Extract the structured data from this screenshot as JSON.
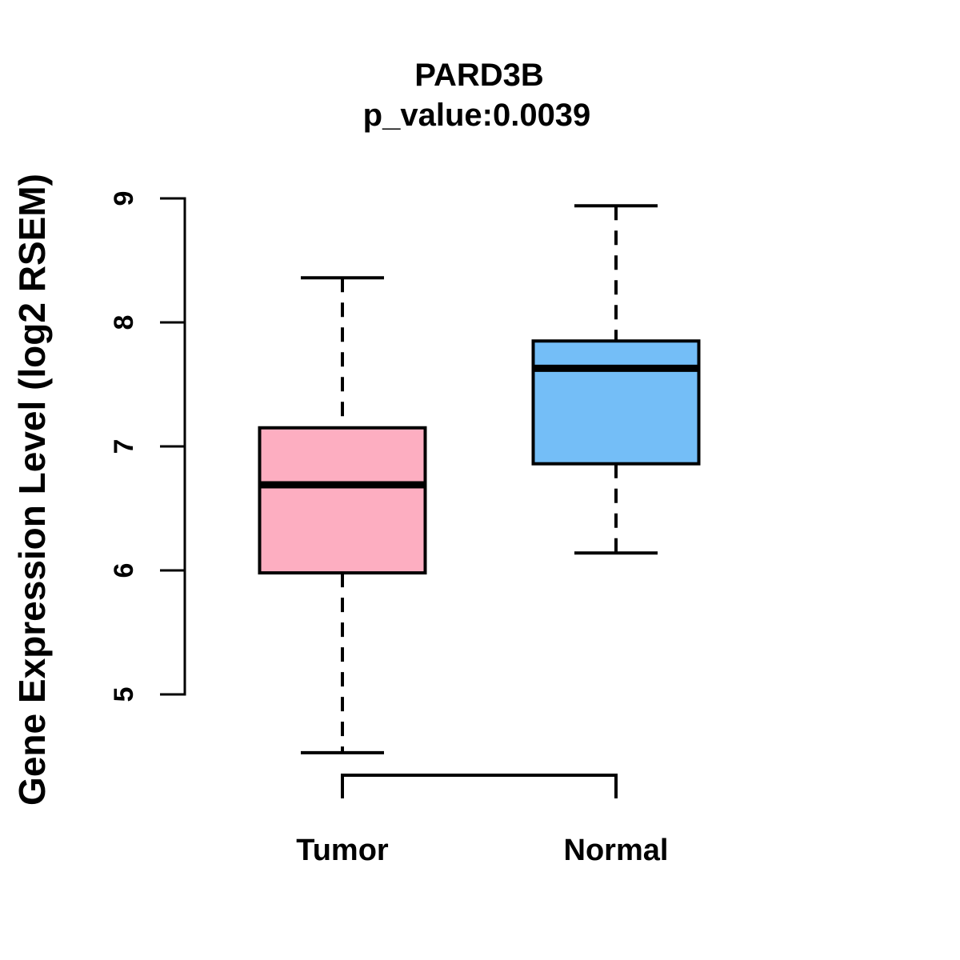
{
  "title": "PARD3B",
  "subtitle": "p_value:0.0039",
  "chart_data": {
    "type": "boxplot",
    "title": "PARD3B",
    "subtitle": "p_value:0.0039",
    "ylabel": "Gene Expression Level (log2 RSEM)",
    "xlabel": "",
    "ylim": [
      5,
      9
    ],
    "yticks": [
      5,
      6,
      7,
      8,
      9
    ],
    "grid": false,
    "legend": "none",
    "categories": [
      "Tumor",
      "Normal"
    ],
    "series": [
      {
        "name": "Tumor",
        "box_color": "#FDAEC1",
        "whisker_low": 4.53,
        "q1": 5.98,
        "median": 6.69,
        "q3": 7.15,
        "whisker_high": 8.36,
        "outliers": []
      },
      {
        "name": "Normal",
        "box_color": "#74BEF7",
        "whisker_low": 6.14,
        "q1": 6.86,
        "median": 7.63,
        "q3": 7.85,
        "whisker_high": 8.94,
        "outliers": []
      }
    ],
    "stroke_color": "#000000",
    "background_color": "#FFFFFF",
    "whisker_style": "dashed",
    "x_bracket": true
  }
}
